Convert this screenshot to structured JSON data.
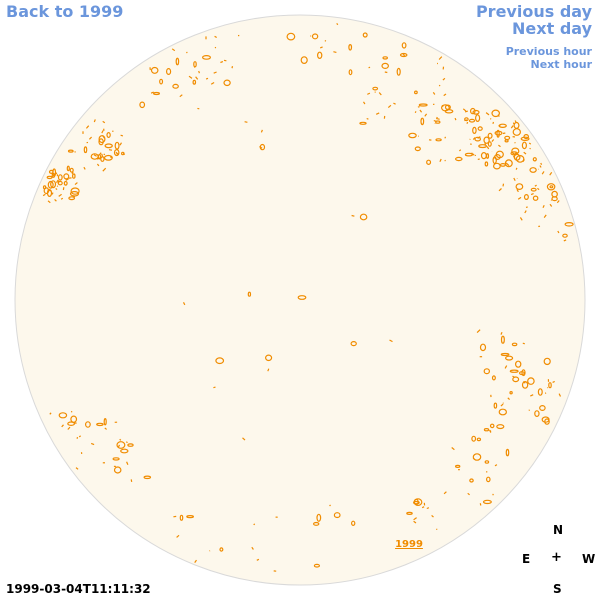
{
  "nav": {
    "back": "Back to 1999",
    "previous_day": "Previous day",
    "next_day": "Next day",
    "previous_hour": "Previous hour",
    "next_hour": "Next hour"
  },
  "timestamp": "1999-03-04T11:11:32",
  "disk_label": "1999",
  "compass": {
    "north": "N",
    "east": "E",
    "center": "+",
    "west": "W",
    "south": "S"
  },
  "colors": {
    "disk_fill": "#fdf8ec",
    "disk_outline": "#d9d9d9",
    "contour": "#f08c00",
    "nav": "#6b96dc"
  },
  "icons": {
    "compass": "compass-rose"
  }
}
